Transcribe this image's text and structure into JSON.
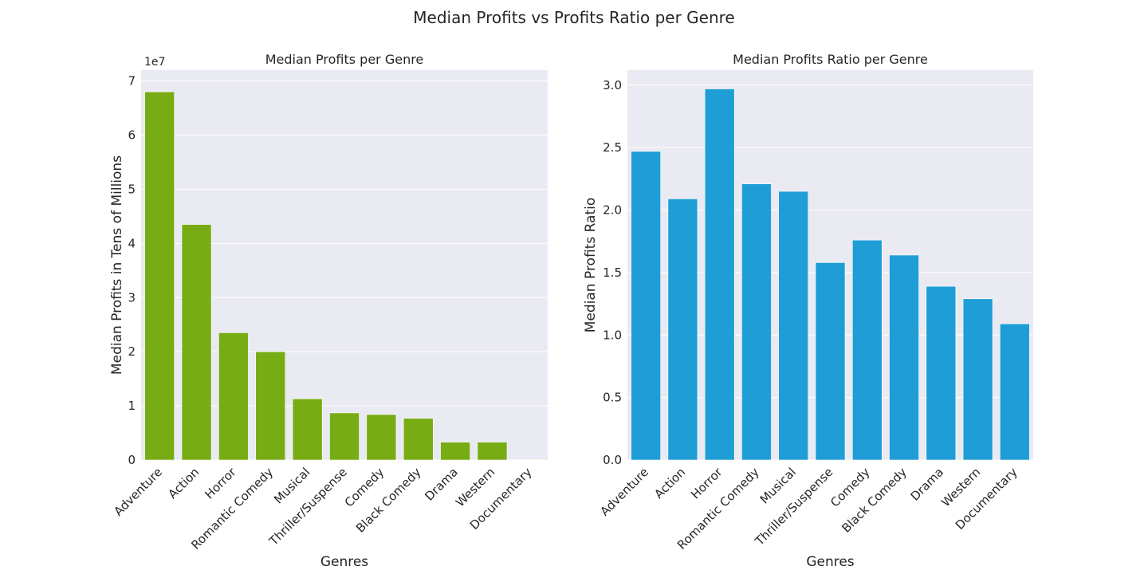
{
  "figure": {
    "title": "Median Profits vs Profits Ratio per Genre",
    "background": "#ffffff",
    "axes_face": "#eaeaf2",
    "grid_color": "#ffffff"
  },
  "chart_data": [
    {
      "type": "bar",
      "title": "Median Profits per Genre",
      "xlabel": "Genres",
      "ylabel": "Median Profits in Tens of Millions",
      "offset_label": "1e7",
      "color": "#77ac14",
      "categories": [
        "Adventure",
        "Action",
        "Horror",
        "Romantic Comedy",
        "Musical",
        "Thriller/Suspense",
        "Comedy",
        "Black Comedy",
        "Drama",
        "Western",
        "Documentary"
      ],
      "values": [
        6.8,
        4.35,
        2.35,
        2.0,
        1.13,
        0.87,
        0.84,
        0.77,
        0.33,
        0.33,
        0.01
      ],
      "ylim": [
        0,
        7.2
      ],
      "yticks": [
        0,
        1,
        2,
        3,
        4,
        5,
        6,
        7
      ],
      "ytick_labels": [
        "0",
        "1",
        "2",
        "3",
        "4",
        "5",
        "6",
        "7"
      ],
      "grid": true
    },
    {
      "type": "bar",
      "title": "Median Profits Ratio per Genre",
      "xlabel": "Genres",
      "ylabel": "Median Profits Ratio",
      "color": "#1f9dd6",
      "categories": [
        "Adventure",
        "Action",
        "Horror",
        "Romantic Comedy",
        "Musical",
        "Thriller/Suspense",
        "Comedy",
        "Black Comedy",
        "Drama",
        "Western",
        "Documentary"
      ],
      "values": [
        2.47,
        2.09,
        2.97,
        2.21,
        2.15,
        1.58,
        1.76,
        1.64,
        1.39,
        1.29,
        1.09
      ],
      "ylim": [
        0,
        3.12
      ],
      "yticks": [
        0,
        0.5,
        1.0,
        1.5,
        2.0,
        2.5,
        3.0
      ],
      "ytick_labels": [
        "0.0",
        "0.5",
        "1.0",
        "1.5",
        "2.0",
        "2.5",
        "3.0"
      ],
      "grid": true
    }
  ]
}
